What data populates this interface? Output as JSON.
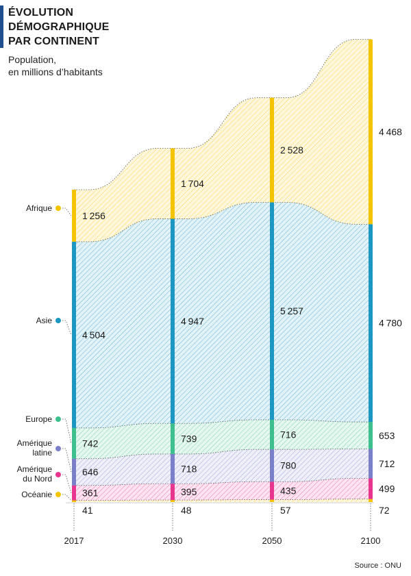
{
  "header": {
    "title_line1": "ÉVOLUTION",
    "title_line2": "DÉMOGRAPHIQUE",
    "title_line3": "PAR CONTINENT",
    "subtitle_line1": "Population,",
    "subtitle_line2": "en millions d’habitants"
  },
  "source": "Source : ONU",
  "chart_data": {
    "type": "area",
    "subtype": "stacked streamgraph",
    "x": [
      "2017",
      "2030",
      "2050",
      "2100"
    ],
    "ylabel": "Population, en millions d’habitants",
    "series": [
      {
        "name": "Océanie",
        "color": "#f5c400",
        "values": [
          41,
          48,
          57,
          72
        ]
      },
      {
        "name": "Amérique du Nord",
        "color": "#e8368f",
        "values": [
          361,
          395,
          435,
          499
        ]
      },
      {
        "name": "Amérique latine",
        "color": "#7b7fc9",
        "values": [
          646,
          718,
          780,
          712
        ]
      },
      {
        "name": "Europe",
        "color": "#3dbf8e",
        "values": [
          742,
          739,
          716,
          653
        ]
      },
      {
        "name": "Asie",
        "color": "#1b97c1",
        "values": [
          4504,
          4947,
          5257,
          4780
        ]
      },
      {
        "name": "Afrique",
        "color": "#f5c400",
        "values": [
          1256,
          1704,
          2528,
          4468
        ]
      }
    ],
    "legend_labels": [
      {
        "key": "afrique",
        "line1": "Afrique",
        "line2": ""
      },
      {
        "key": "asie",
        "line1": "Asie",
        "line2": ""
      },
      {
        "key": "europe",
        "line1": "Europe",
        "line2": ""
      },
      {
        "key": "amlat",
        "line1": "Amérique",
        "line2": "latine"
      },
      {
        "key": "amnord",
        "line1": "Amérique",
        "line2": "du Nord"
      },
      {
        "key": "oceanie",
        "line1": "Océanie",
        "line2": ""
      }
    ],
    "legend_placement": "left",
    "grid": false
  }
}
